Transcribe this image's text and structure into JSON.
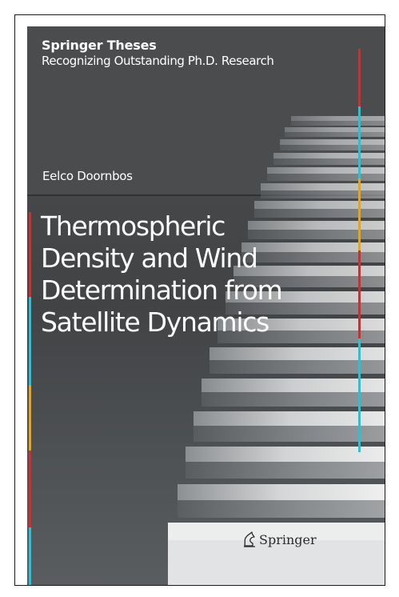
{
  "cover": {
    "series_name": "Springer Theses",
    "series_subtitle": "Recognizing Outstanding Ph.D. Research",
    "author": "Eelco Doornbos",
    "title_lines": [
      "Thermospheric",
      "Density and Wind",
      "Determination from",
      "Satellite Dynamics"
    ],
    "publisher": "Springer",
    "colors": {
      "red_stripe": "#b33a3a",
      "cyan_stripe": "#3fb8c8",
      "yellow_stripe": "#d9a63a",
      "background_dark": "#434547",
      "step_light": "#e8e8e8"
    },
    "publisher_logo_icon": "springer-horse-icon"
  }
}
